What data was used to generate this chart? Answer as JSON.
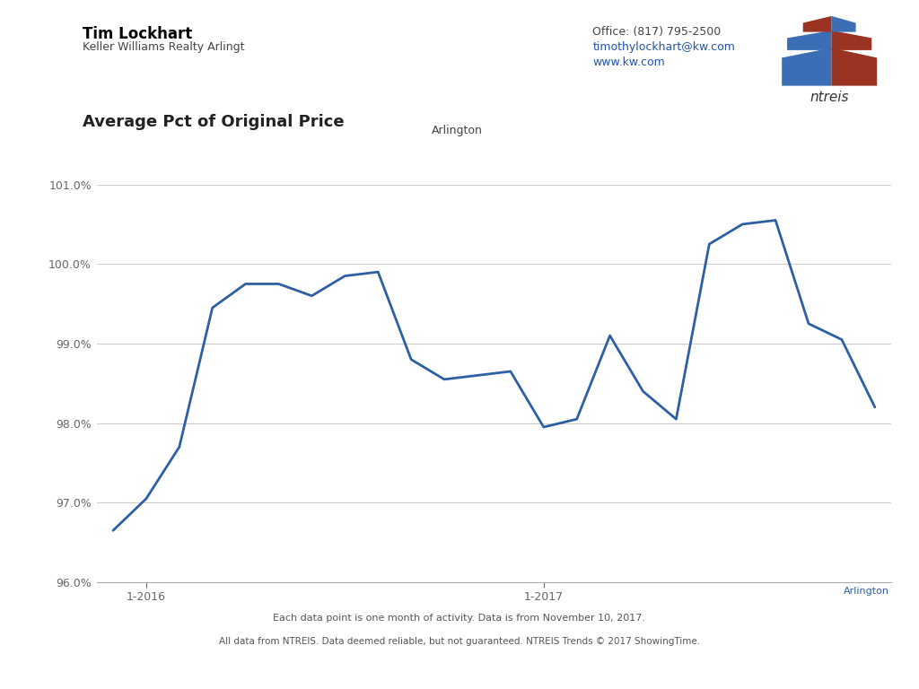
{
  "title": "Average Pct of Original Price",
  "background_color": "#ffffff",
  "line_color": "#2e5fa3",
  "line_width": 2.0,
  "legend_label": "Arlington",
  "xlabel_ticks": [
    "1-2016",
    "1-2017"
  ],
  "xlabel_tick_positions": [
    1,
    13
  ],
  "ylim": [
    96.0,
    101.5
  ],
  "yticks": [
    96.0,
    97.0,
    98.0,
    99.0,
    100.0,
    101.0
  ],
  "header_name": "Tim Lockhart",
  "header_company": "Keller Williams Realty Arlingt",
  "header_office": "Office: (817) 795-2500",
  "header_email": "timothylockhart@kw.com",
  "header_website": "www.kw.com",
  "footer_label": "Arlington",
  "footer_note": "Each data point is one month of activity. Data is from November 10, 2017.",
  "footer_disclaimer": "All data from NTREIS. Data deemed reliable, but not guaranteed. NTREIS Trends © 2017 ShowingTime.",
  "x_values": [
    0,
    1,
    2,
    3,
    4,
    5,
    6,
    7,
    8,
    9,
    10,
    11,
    12,
    13,
    14,
    15,
    16,
    17,
    18,
    19,
    20,
    21,
    22,
    23
  ],
  "y_values": [
    96.65,
    97.05,
    97.7,
    99.45,
    99.75,
    99.75,
    99.6,
    99.85,
    99.9,
    98.8,
    98.55,
    98.6,
    98.65,
    97.95,
    98.05,
    99.1,
    98.4,
    98.05,
    100.25,
    100.5,
    100.55,
    99.25,
    99.05,
    98.2
  ]
}
